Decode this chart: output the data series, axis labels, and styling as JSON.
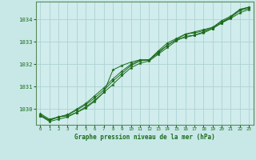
{
  "title": "Graphe pression niveau de la mer (hPa)",
  "background_color": "#c8e8e8",
  "plot_bg_color": "#d0ecec",
  "grid_color": "#a8cece",
  "line_color": "#1a6b1a",
  "marker_color": "#1a6b1a",
  "spine_color": "#5a8a5a",
  "xlim": [
    -0.5,
    23.5
  ],
  "ylim": [
    1029.3,
    1034.8
  ],
  "yticks": [
    1030,
    1031,
    1032,
    1033,
    1034
  ],
  "xticks": [
    0,
    1,
    2,
    3,
    4,
    5,
    6,
    7,
    8,
    9,
    10,
    11,
    12,
    13,
    14,
    15,
    16,
    17,
    18,
    19,
    20,
    21,
    22,
    23
  ],
  "series": [
    [
      1029.7,
      1029.5,
      1029.65,
      1029.7,
      1029.85,
      1030.1,
      1030.4,
      1030.75,
      1031.1,
      1031.5,
      1031.85,
      1032.05,
      1032.15,
      1032.45,
      1032.75,
      1033.05,
      1033.25,
      1033.3,
      1033.45,
      1033.6,
      1033.85,
      1034.05,
      1034.3,
      1034.45
    ],
    [
      1029.75,
      1029.5,
      1029.65,
      1029.75,
      1029.95,
      1030.2,
      1030.5,
      1030.85,
      1031.25,
      1031.6,
      1031.95,
      1032.15,
      1032.2,
      1032.55,
      1032.85,
      1033.1,
      1033.2,
      1033.3,
      1033.4,
      1033.6,
      1033.85,
      1034.1,
      1034.4,
      1034.5
    ],
    [
      1029.8,
      1029.55,
      1029.65,
      1029.75,
      1030.0,
      1030.25,
      1030.6,
      1030.95,
      1031.35,
      1031.7,
      1032.0,
      1032.2,
      1032.2,
      1032.6,
      1032.95,
      1033.15,
      1033.35,
      1033.4,
      1033.5,
      1033.65,
      1033.95,
      1034.15,
      1034.45,
      1034.55
    ],
    [
      1029.7,
      1029.45,
      1029.55,
      1029.65,
      1029.85,
      1030.05,
      1030.35,
      1030.75,
      1031.75,
      1031.95,
      1032.1,
      1032.2,
      1032.2,
      1032.5,
      1032.85,
      1033.1,
      1033.35,
      1033.45,
      1033.55,
      1033.65,
      1033.9,
      1034.1,
      1034.45,
      1034.55
    ]
  ]
}
